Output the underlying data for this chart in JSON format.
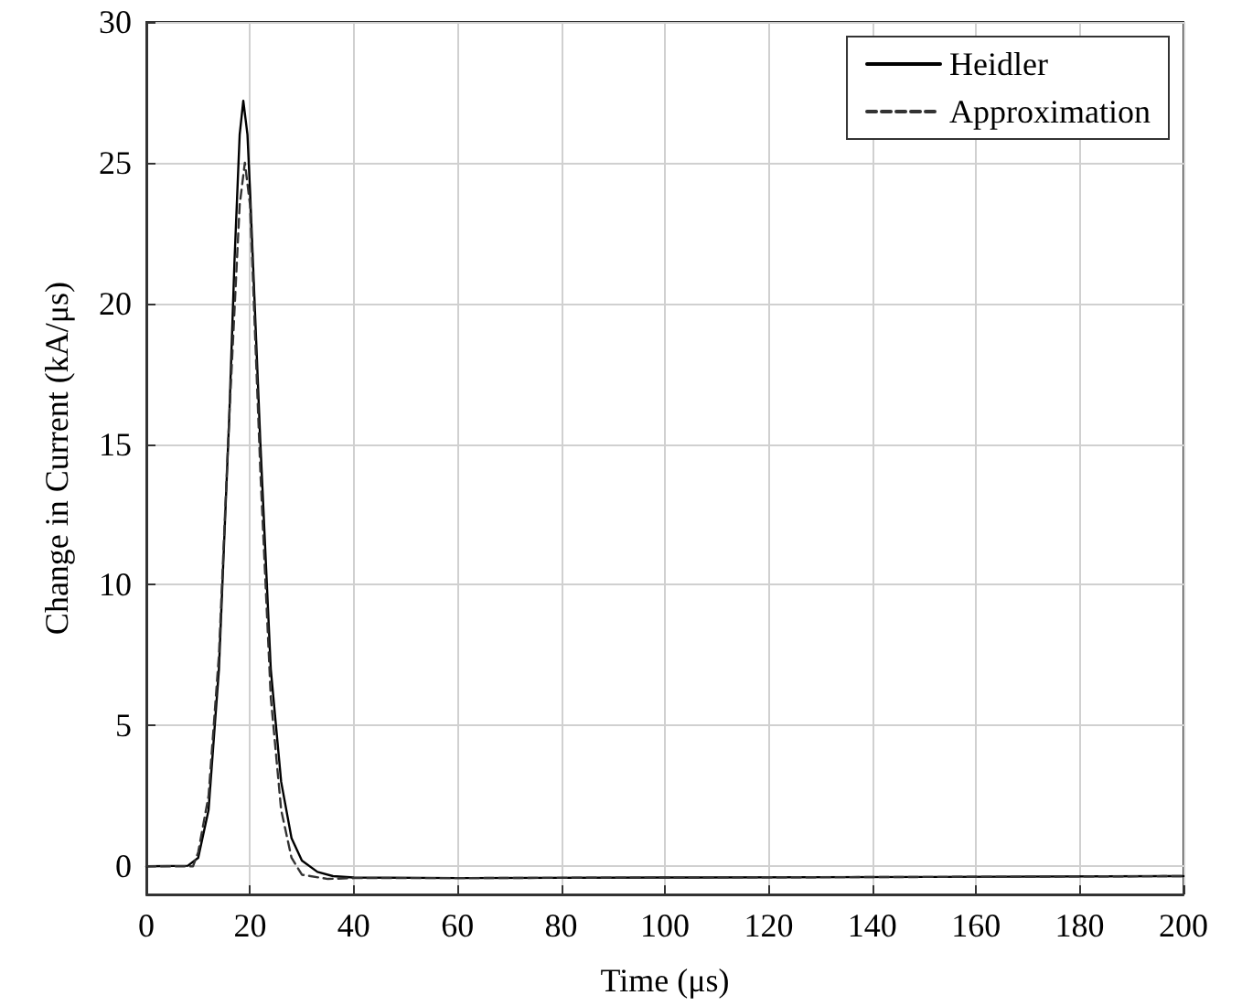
{
  "chart_data": {
    "type": "line",
    "xlabel": "Time (μs)",
    "ylabel": "Change in Current (kA/μs)",
    "xlim": [
      0,
      200
    ],
    "xticks": [
      0,
      20,
      40,
      60,
      80,
      100,
      120,
      140,
      160,
      180,
      200
    ],
    "ylim": [
      -1,
      30
    ],
    "yticks": [
      0,
      5,
      10,
      15,
      20,
      25,
      30
    ],
    "grid": true,
    "legend": "top right",
    "marker": "none",
    "series": [
      {
        "name": "Heidler",
        "color": "#000000",
        "line_style": "solid",
        "x": [
          0,
          8,
          10,
          12,
          14,
          16,
          17,
          18,
          18.7,
          19.5,
          20,
          22,
          24,
          26,
          28,
          30,
          33,
          36,
          40,
          60,
          100,
          150,
          200
        ],
        "values": [
          0,
          0.02,
          0.3,
          2,
          7,
          16,
          21.5,
          26,
          27.2,
          26,
          24,
          15,
          7,
          3,
          1,
          0.2,
          -0.2,
          -0.35,
          -0.4,
          -0.42,
          -0.4,
          -0.38,
          -0.35
        ]
      },
      {
        "name": "Approximation",
        "color": "#333333",
        "line_style": "dashed",
        "x": [
          0,
          9,
          10,
          12,
          14,
          16,
          18,
          19,
          20,
          22,
          24,
          26,
          28,
          30,
          35,
          40,
          60,
          100,
          150,
          200
        ],
        "values": [
          0,
          0,
          0.5,
          2.5,
          7.5,
          16,
          23.5,
          25,
          23.5,
          14,
          6,
          2,
          0.3,
          -0.3,
          -0.45,
          -0.42,
          -0.42,
          -0.4,
          -0.38,
          -0.35
        ]
      }
    ]
  }
}
